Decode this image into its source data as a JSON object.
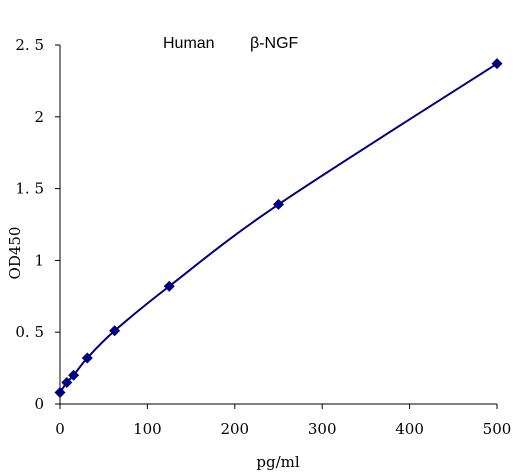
{
  "chart_data": {
    "type": "scatter",
    "title_parts": [
      "Human",
      "β-NGF"
    ],
    "xlabel": "pg/ml",
    "ylabel": "OD450",
    "xlim": [
      0,
      500
    ],
    "ylim": [
      0,
      2.5
    ],
    "x_ticks": [
      0,
      100,
      200,
      300,
      400,
      500
    ],
    "y_ticks": [
      0,
      0.5,
      1,
      1.5,
      2,
      2.5
    ],
    "y_tick_labels": [
      "0",
      "0. 5",
      "1",
      "1. 5",
      "2",
      "2. 5"
    ],
    "grid": false,
    "legend": false,
    "marker": "diamond",
    "color": "#00007f",
    "points": [
      {
        "x": 0,
        "y": 0.08
      },
      {
        "x": 7.8,
        "y": 0.15
      },
      {
        "x": 15.6,
        "y": 0.2
      },
      {
        "x": 31.2,
        "y": 0.32
      },
      {
        "x": 62.5,
        "y": 0.51
      },
      {
        "x": 125,
        "y": 0.82
      },
      {
        "x": 250,
        "y": 1.39
      },
      {
        "x": 500,
        "y": 2.37
      }
    ]
  }
}
